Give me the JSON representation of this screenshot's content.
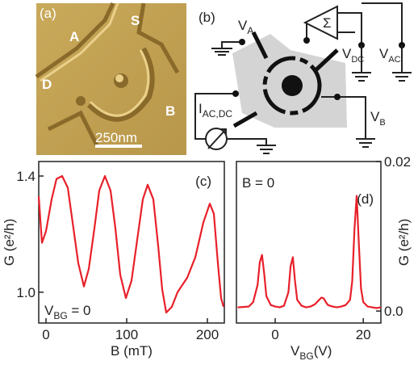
{
  "panel_a": {
    "label": "(a)",
    "terminals": [
      "A",
      "S",
      "D",
      "B"
    ],
    "scale_bar": "250nm"
  },
  "panel_b": {
    "label": "(b)",
    "v_a": [
      "V",
      "A"
    ],
    "sigma": "Σ",
    "v_dc": [
      "V",
      "DC"
    ],
    "v_ac": [
      "V",
      "AC"
    ],
    "i_source": [
      "I",
      "AC,DC"
    ],
    "v_b": [
      "V",
      "B"
    ]
  },
  "chart_data": [
    {
      "type": "line",
      "panel_label": "(c)",
      "annotation": [
        "V",
        "BG",
        " = 0"
      ],
      "x_label": "B (mT)",
      "y_label": "G (e²/h)",
      "x": [
        -9,
        -5,
        0,
        7,
        13,
        20,
        27,
        33,
        40,
        47,
        53,
        60,
        66,
        73,
        80,
        86,
        92,
        99,
        106,
        113,
        120,
        126,
        133,
        139,
        144,
        149,
        156,
        163,
        175,
        185,
        195,
        203,
        208,
        213,
        217,
        220
      ],
      "series": [
        {
          "color": "#e8202a",
          "values": [
            1.33,
            1.17,
            1.21,
            1.32,
            1.39,
            1.4,
            1.36,
            1.24,
            1.1,
            1.02,
            1.08,
            1.22,
            1.35,
            1.4,
            1.35,
            1.22,
            1.06,
            0.98,
            1.04,
            1.18,
            1.32,
            1.37,
            1.32,
            1.16,
            1.01,
            0.93,
            0.95,
            1.0,
            1.05,
            1.12,
            1.24,
            1.305,
            1.27,
            1.1,
            0.98,
            0.95
          ]
        }
      ],
      "xlim": [
        -9,
        221
      ],
      "xticks": [
        0,
        100,
        200
      ],
      "ylim": [
        0.894,
        1.45
      ],
      "yticks": [
        {
          "value": 1,
          "label": "1.0"
        },
        1.4
      ],
      "y_axis_side": "left"
    },
    {
      "type": "line",
      "panel_label": "(d)",
      "annotation": [
        "B = 0"
      ],
      "x_label": [
        "V",
        "BG",
        "(V)"
      ],
      "y_label": "G (e²/h)",
      "x": [
        -8.5,
        -6,
        -5,
        -4,
        -3.5,
        -3,
        -2.5,
        -2,
        -1,
        0,
        1,
        2,
        3,
        3.5,
        4,
        4.5,
        5,
        6,
        7,
        8,
        9,
        10,
        10.5,
        11,
        11.5,
        12,
        13,
        14,
        15,
        16,
        17,
        17.5,
        18,
        18.5,
        19,
        19.5,
        20,
        21,
        22,
        23,
        24
      ],
      "series": [
        {
          "color": "#e8202a",
          "values": [
            0.0005,
            0.0006,
            0.0012,
            0.0035,
            0.0065,
            0.0075,
            0.005,
            0.002,
            0.0008,
            0.0006,
            0.0005,
            0.0007,
            0.0025,
            0.006,
            0.0072,
            0.004,
            0.0015,
            0.0007,
            0.0005,
            0.0006,
            0.0009,
            0.0015,
            0.0018,
            0.0017,
            0.0012,
            0.0008,
            0.0006,
            0.0005,
            0.0006,
            0.0008,
            0.0015,
            0.004,
            0.011,
            0.0154,
            0.009,
            0.003,
            0.0012,
            0.0006,
            0.0005,
            0.0004,
            0.0005
          ]
        }
      ],
      "xlim": [
        -8.8,
        24
      ],
      "xticks": [
        0,
        20
      ],
      "ylim": [
        -0.0016,
        0.02
      ],
      "yticks": [
        {
          "value": 0,
          "label": "0.0"
        },
        0.02
      ],
      "y_axis_side": "right"
    }
  ]
}
